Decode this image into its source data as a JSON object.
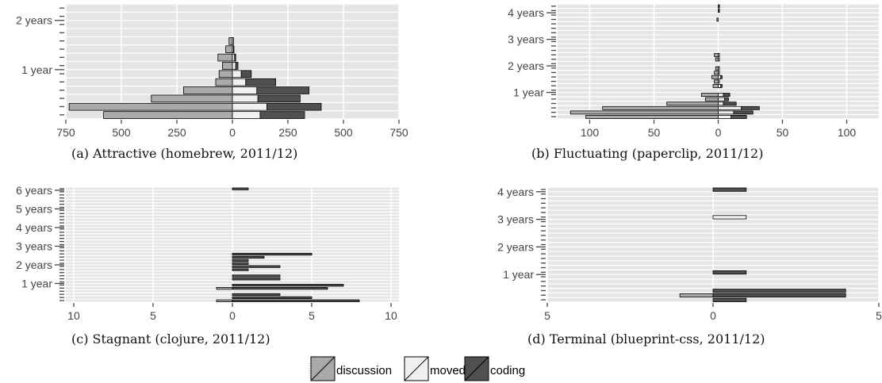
{
  "legend": {
    "items": [
      {
        "label": "discussion",
        "color": "#aaaaaa"
      },
      {
        "label": "moved",
        "color": "#f0f0f0"
      },
      {
        "label": "coding",
        "color": "#505050"
      }
    ]
  },
  "chart_data": [
    {
      "type": "bar",
      "caption": "(a) Attractive (homebrew, 2011/12)",
      "orientation": "horizontal-diverging",
      "x_ticks": [
        750,
        500,
        250,
        0,
        250,
        500,
        750
      ],
      "x_range": [
        -750,
        750
      ],
      "y_labels": [
        {
          "text": "2 years",
          "month": 24
        },
        {
          "text": "1 year",
          "month": 12
        }
      ],
      "months": 28,
      "bars": [
        {
          "month": 0,
          "discussion": 580,
          "moved": 125,
          "coding": 200
        },
        {
          "month": 2,
          "discussion": 735,
          "moved": 155,
          "coding": 245
        },
        {
          "month": 4,
          "discussion": 365,
          "moved": 115,
          "coding": 190
        },
        {
          "month": 6,
          "discussion": 220,
          "moved": 110,
          "coding": 235
        },
        {
          "month": 8,
          "discussion": 75,
          "moved": 60,
          "coding": 135
        },
        {
          "month": 10,
          "discussion": 60,
          "moved": 40,
          "coding": 45
        },
        {
          "month": 12,
          "discussion": 45,
          "moved": 15,
          "coding": 10
        },
        {
          "month": 14,
          "discussion": 65,
          "moved": 10,
          "coding": 5
        },
        {
          "month": 16,
          "discussion": 30,
          "moved": 5,
          "coding": 2
        },
        {
          "month": 18,
          "discussion": 15,
          "moved": 5,
          "coding": 0
        }
      ]
    },
    {
      "type": "bar",
      "caption": "(b) Fluctuating (paperclip, 2011/12)",
      "orientation": "horizontal-diverging",
      "x_ticks": [
        100,
        50,
        0,
        50,
        100
      ],
      "x_range": [
        -125,
        125
      ],
      "y_labels": [
        {
          "text": "4 years",
          "month": 48
        },
        {
          "text": "3 years",
          "month": 36
        },
        {
          "text": "2 years",
          "month": 24
        },
        {
          "text": "1 year",
          "month": 12
        }
      ],
      "months": 52,
      "bars": [
        {
          "month": 0,
          "discussion": 103,
          "moved": 10,
          "coding": 12
        },
        {
          "month": 2,
          "discussion": 115,
          "moved": 12,
          "coding": 15
        },
        {
          "month": 4,
          "discussion": 90,
          "moved": 18,
          "coding": 14
        },
        {
          "month": 6,
          "discussion": 40,
          "moved": 4,
          "coding": 10
        },
        {
          "month": 8,
          "discussion": 10,
          "moved": 5,
          "coding": 3
        },
        {
          "month": 10,
          "discussion": 13,
          "moved": 4,
          "coding": 5
        },
        {
          "month": 14,
          "discussion": 4,
          "moved": 2,
          "coding": 1
        },
        {
          "month": 16,
          "discussion": 3,
          "moved": 1,
          "coding": 0
        },
        {
          "month": 18,
          "discussion": 5,
          "moved": 2,
          "coding": 1
        },
        {
          "month": 20,
          "discussion": 3,
          "moved": 1,
          "coding": 0
        },
        {
          "month": 22,
          "discussion": 2,
          "moved": 1,
          "coding": 0
        },
        {
          "month": 26,
          "discussion": 2,
          "moved": 1,
          "coding": 0
        },
        {
          "month": 28,
          "discussion": 3,
          "moved": 1,
          "coding": 0
        },
        {
          "month": 44,
          "discussion": 1,
          "moved": 0,
          "coding": 0
        },
        {
          "month": 48,
          "discussion": 0,
          "moved": 0,
          "coding": 1
        },
        {
          "month": 50,
          "discussion": 0,
          "moved": 0,
          "coding": 1
        }
      ]
    },
    {
      "type": "bar",
      "caption": "(c) Stagnant (clojure, 2011/12)",
      "orientation": "horizontal-diverging",
      "x_ticks": [
        10,
        5,
        0,
        5,
        10
      ],
      "x_range": [
        -10.5,
        10.5
      ],
      "y_labels": [
        {
          "text": "6 years",
          "month": 72
        },
        {
          "text": "5 years",
          "month": 60
        },
        {
          "text": "4 years",
          "month": 48
        },
        {
          "text": "3 years",
          "month": 36
        },
        {
          "text": "2 years",
          "month": 24
        },
        {
          "text": "1 year",
          "month": 12
        }
      ],
      "months": 74,
      "bars": [
        {
          "month": 0,
          "discussion": 1,
          "moved": 0,
          "coding": 8
        },
        {
          "month": 2,
          "discussion": 0,
          "moved": 0,
          "coding": 5
        },
        {
          "month": 4,
          "discussion": 0,
          "moved": 0,
          "coding": 3
        },
        {
          "month": 6,
          "discussion": 0,
          "moved": 0,
          "coding": 0
        },
        {
          "month": 8,
          "discussion": 1,
          "moved": 0,
          "coding": 6
        },
        {
          "month": 10,
          "discussion": 0,
          "moved": 0,
          "coding": 7
        },
        {
          "month": 12,
          "discussion": 0,
          "moved": 0,
          "coding": 0
        },
        {
          "month": 14,
          "discussion": 0,
          "moved": 0,
          "coding": 3
        },
        {
          "month": 16,
          "discussion": 0,
          "moved": 0,
          "coding": 3
        },
        {
          "month": 18,
          "discussion": 0,
          "moved": 0,
          "coding": 0
        },
        {
          "month": 20,
          "discussion": 0,
          "moved": 0,
          "coding": 1
        },
        {
          "month": 22,
          "discussion": 0,
          "moved": 0,
          "coding": 3
        },
        {
          "month": 24,
          "discussion": 0,
          "moved": 0,
          "coding": 1
        },
        {
          "month": 26,
          "discussion": 0,
          "moved": 0,
          "coding": 1
        },
        {
          "month": 28,
          "discussion": 0,
          "moved": 0,
          "coding": 2
        },
        {
          "month": 30,
          "discussion": 0,
          "moved": 0,
          "coding": 5
        },
        {
          "month": 72,
          "discussion": 0,
          "moved": 0,
          "coding": 1
        }
      ]
    },
    {
      "type": "bar",
      "caption": "(d) Terminal (blueprint-css, 2011/12)",
      "orientation": "horizontal-diverging",
      "x_ticks": [
        5,
        0,
        5
      ],
      "x_range": [
        -5,
        5
      ],
      "y_labels": [
        {
          "text": "4 years",
          "month": 48
        },
        {
          "text": "3 years",
          "month": 36
        },
        {
          "text": "2 years",
          "month": 24
        },
        {
          "text": "1 year",
          "month": 12
        }
      ],
      "months": 50,
      "bars": [
        {
          "month": 0,
          "discussion": 0,
          "moved": 0,
          "coding": 1
        },
        {
          "month": 2,
          "discussion": 1,
          "moved": 0,
          "coding": 4
        },
        {
          "month": 4,
          "discussion": 0,
          "moved": 0,
          "coding": 4
        },
        {
          "month": 12,
          "discussion": 0,
          "moved": 0,
          "coding": 1
        },
        {
          "month": 36,
          "discussion": 0,
          "moved": 1,
          "coding": 0
        },
        {
          "month": 48,
          "discussion": 0,
          "moved": 0,
          "coding": 1
        }
      ]
    }
  ]
}
